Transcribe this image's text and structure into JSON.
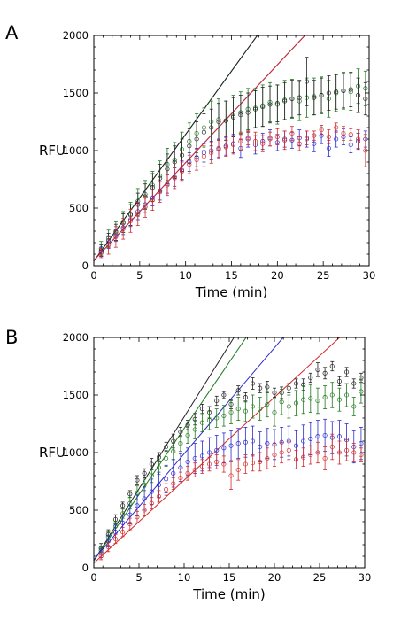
{
  "chart_data": [
    {
      "panel_label": "A",
      "type": "scatter",
      "xlabel": "Time (min)",
      "ylabel": "RFU",
      "xlim": [
        0,
        30
      ],
      "ylim": [
        0,
        2000
      ],
      "xticks": [
        0,
        5,
        10,
        15,
        20,
        25,
        30
      ],
      "yticks": [
        0,
        500,
        1000,
        1500,
        2000
      ],
      "series": [
        {
          "color": "#1e7a1e",
          "x": [
            0.8,
            1.6,
            2.4,
            3.2,
            4.0,
            4.8,
            5.6,
            6.4,
            7.2,
            8.0,
            8.8,
            9.6,
            10.4,
            11.2,
            12.0,
            12.8,
            13.6,
            14.4,
            15.2,
            16.0,
            16.8,
            17.6,
            18.4,
            19.2,
            20.0,
            20.8,
            21.6,
            22.4,
            23.2,
            24.0,
            24.8,
            25.6,
            26.4,
            27.2,
            28.0,
            28.8,
            29.6
          ],
          "y": [
            150,
            240,
            300,
            380,
            450,
            560,
            620,
            700,
            780,
            880,
            920,
            1010,
            1080,
            1150,
            1200,
            1250,
            1270,
            1260,
            1300,
            1330,
            1360,
            1370,
            1390,
            1420,
            1400,
            1440,
            1450,
            1430,
            1460,
            1470,
            1480,
            1450,
            1500,
            1520,
            1510,
            1560,
            1540
          ],
          "err": [
            60,
            70,
            80,
            90,
            100,
            110,
            120,
            120,
            130,
            140,
            150,
            150,
            160,
            170,
            170,
            180,
            180,
            170,
            180,
            180,
            180,
            170,
            180,
            170,
            170,
            170,
            170,
            170,
            170,
            160,
            160,
            160,
            160,
            160,
            160,
            150,
            150
          ],
          "fit_intercept": 40,
          "fit_slope": 110
        },
        {
          "color": "#222222",
          "x": [
            0.8,
            1.6,
            2.4,
            3.2,
            4.0,
            4.8,
            5.6,
            6.4,
            7.2,
            8.0,
            8.8,
            9.6,
            10.4,
            11.2,
            12.0,
            12.8,
            13.6,
            14.4,
            15.2,
            16.0,
            16.8,
            17.6,
            18.4,
            19.2,
            20.0,
            20.8,
            21.6,
            22.4,
            23.2,
            24.0,
            24.8,
            25.6,
            26.4,
            27.2,
            28.0,
            28.8,
            29.6
          ],
          "y": [
            130,
            220,
            290,
            370,
            440,
            530,
            600,
            680,
            760,
            840,
            900,
            960,
            1040,
            1100,
            1160,
            1200,
            1250,
            1260,
            1290,
            1310,
            1330,
            1360,
            1380,
            1400,
            1410,
            1430,
            1450,
            1460,
            1600,
            1460,
            1480,
            1500,
            1510,
            1520,
            1530,
            1480,
            1450
          ],
          "err": [
            50,
            60,
            70,
            80,
            90,
            100,
            110,
            120,
            120,
            130,
            140,
            140,
            150,
            150,
            160,
            160,
            160,
            170,
            170,
            170,
            170,
            160,
            170,
            160,
            160,
            160,
            160,
            150,
            210,
            150,
            150,
            150,
            150,
            150,
            150,
            150,
            140
          ],
          "fit_intercept": 40,
          "fit_slope": 110
        },
        {
          "color": "#2b2bcc",
          "x": [
            0.8,
            1.6,
            2.4,
            3.2,
            4.0,
            4.8,
            5.6,
            6.4,
            7.2,
            8.0,
            8.8,
            9.6,
            10.4,
            11.2,
            12.0,
            12.8,
            13.6,
            14.4,
            15.2,
            16.0,
            16.8,
            17.6,
            18.4,
            19.2,
            20.0,
            20.8,
            21.6,
            22.4,
            23.2,
            24.0,
            24.8,
            25.6,
            26.4,
            27.2,
            28.0,
            28.8,
            29.6
          ],
          "y": [
            120,
            200,
            260,
            330,
            400,
            470,
            530,
            590,
            650,
            710,
            770,
            830,
            900,
            940,
            980,
            1000,
            1020,
            1040,
            1060,
            1020,
            1100,
            1050,
            1080,
            1110,
            1070,
            1100,
            1090,
            1110,
            1100,
            1060,
            1130,
            1020,
            1100,
            1120,
            1050,
            1080,
            1100
          ],
          "err": [
            40,
            50,
            50,
            60,
            60,
            70,
            70,
            70,
            80,
            80,
            80,
            80,
            80,
            80,
            80,
            80,
            80,
            80,
            80,
            80,
            70,
            80,
            70,
            70,
            70,
            70,
            70,
            70,
            70,
            70,
            70,
            70,
            70,
            70,
            70,
            70,
            70
          ],
          "fit_intercept": 45,
          "fit_slope": 85
        },
        {
          "color": "#d42a2a",
          "x": [
            0.8,
            1.6,
            2.4,
            3.2,
            4.0,
            4.8,
            5.6,
            6.4,
            7.2,
            8.0,
            8.8,
            9.6,
            10.4,
            11.2,
            12.0,
            12.8,
            13.6,
            14.4,
            15.2,
            16.0,
            16.8,
            17.6,
            18.4,
            19.2,
            20.0,
            20.8,
            21.6,
            22.4,
            23.2,
            24.0,
            24.8,
            25.6,
            26.4,
            27.2,
            28.0,
            28.8,
            29.6
          ],
          "y": [
            110,
            180,
            250,
            320,
            390,
            450,
            510,
            570,
            640,
            700,
            760,
            820,
            880,
            920,
            950,
            980,
            1010,
            1030,
            1050,
            1080,
            1110,
            1080,
            1060,
            1100,
            1120,
            1090,
            1150,
            1060,
            1110,
            1130,
            1180,
            1120,
            1200,
            1150,
            1140,
            1100,
            1000
          ],
          "err": [
            40,
            80,
            90,
            90,
            100,
            100,
            90,
            90,
            90,
            90,
            90,
            80,
            80,
            90,
            90,
            90,
            80,
            80,
            80,
            80,
            60,
            80,
            70,
            60,
            70,
            80,
            60,
            60,
            60,
            40,
            40,
            60,
            40,
            60,
            50,
            80,
            140
          ],
          "fit_intercept": 45,
          "fit_slope": 85
        }
      ]
    },
    {
      "panel_label": "B",
      "type": "scatter",
      "xlabel": "Time (min)",
      "ylabel": "RFU",
      "xlim": [
        0,
        30
      ],
      "ylim": [
        0,
        2000
      ],
      "xticks": [
        0,
        5,
        10,
        15,
        20,
        25,
        30
      ],
      "yticks": [
        0,
        500,
        1000,
        1500,
        2000
      ],
      "series": [
        {
          "color": "#222222",
          "x": [
            0.8,
            1.6,
            2.4,
            3.2,
            4.0,
            4.8,
            5.6,
            6.4,
            7.2,
            8.0,
            8.8,
            9.6,
            10.4,
            11.2,
            12.0,
            12.8,
            13.6,
            14.4,
            15.2,
            16.0,
            16.8,
            17.6,
            18.4,
            19.2,
            20.0,
            20.8,
            21.6,
            22.4,
            23.2,
            24.0,
            24.8,
            25.6,
            26.4,
            27.2,
            28.0,
            28.8,
            29.6
          ],
          "y": [
            170,
            290,
            420,
            540,
            640,
            760,
            820,
            900,
            960,
            1050,
            1100,
            1180,
            1240,
            1290,
            1380,
            1350,
            1450,
            1500,
            1420,
            1540,
            1480,
            1600,
            1560,
            1570,
            1520,
            1520,
            1560,
            1600,
            1590,
            1650,
            1720,
            1690,
            1750,
            1620,
            1700,
            1600,
            1650
          ],
          "err": [
            40,
            40,
            40,
            30,
            30,
            40,
            40,
            50,
            40,
            40,
            60,
            40,
            40,
            50,
            40,
            50,
            40,
            30,
            40,
            40,
            40,
            50,
            40,
            50,
            40,
            50,
            40,
            40,
            50,
            40,
            60,
            50,
            40,
            40,
            40,
            40,
            40
          ],
          "fit_intercept": 60,
          "fit_slope": 125
        },
        {
          "color": "#1e7a1e",
          "x": [
            0.8,
            1.6,
            2.4,
            3.2,
            4.0,
            4.8,
            5.6,
            6.4,
            7.2,
            8.0,
            8.8,
            9.6,
            10.4,
            11.2,
            12.0,
            12.8,
            13.6,
            14.4,
            15.2,
            16.0,
            16.8,
            17.6,
            18.4,
            19.2,
            20.0,
            20.8,
            21.6,
            22.4,
            23.2,
            24.0,
            24.8,
            25.6,
            26.4,
            27.2,
            28.0,
            28.8,
            29.6
          ],
          "y": [
            150,
            270,
            360,
            470,
            560,
            650,
            720,
            800,
            870,
            950,
            1010,
            1080,
            1150,
            1200,
            1260,
            1280,
            1300,
            1320,
            1350,
            1380,
            1360,
            1400,
            1380,
            1420,
            1350,
            1440,
            1400,
            1430,
            1460,
            1470,
            1450,
            1480,
            1500,
            1460,
            1500,
            1400,
            1530
          ],
          "err": [
            30,
            40,
            40,
            40,
            50,
            60,
            50,
            60,
            60,
            70,
            70,
            70,
            70,
            80,
            80,
            80,
            80,
            90,
            100,
            100,
            90,
            100,
            100,
            110,
            120,
            110,
            100,
            110,
            120,
            120,
            110,
            100,
            110,
            100,
            100,
            80,
            100
          ],
          "fit_intercept": 60,
          "fit_slope": 115
        },
        {
          "color": "#2b2bcc",
          "x": [
            0.8,
            1.6,
            2.4,
            3.2,
            4.0,
            4.8,
            5.6,
            6.4,
            7.2,
            8.0,
            8.8,
            9.6,
            10.4,
            11.2,
            12.0,
            12.8,
            13.6,
            14.4,
            15.2,
            16.0,
            16.8,
            17.6,
            18.4,
            19.2,
            20.0,
            20.8,
            21.6,
            22.4,
            23.2,
            24.0,
            24.8,
            25.6,
            26.4,
            27.2,
            28.0,
            28.8,
            29.6
          ],
          "y": [
            130,
            230,
            310,
            390,
            460,
            540,
            600,
            660,
            720,
            770,
            820,
            870,
            920,
            950,
            970,
            1000,
            1020,
            1040,
            1060,
            1080,
            1090,
            1100,
            1050,
            1080,
            1070,
            1090,
            1100,
            1060,
            1100,
            1120,
            1140,
            1150,
            1130,
            1140,
            1110,
            1050,
            1080
          ],
          "err": [
            40,
            50,
            60,
            70,
            80,
            90,
            100,
            110,
            110,
            120,
            120,
            120,
            120,
            130,
            130,
            130,
            130,
            130,
            130,
            130,
            130,
            130,
            130,
            130,
            130,
            130,
            130,
            130,
            140,
            140,
            140,
            140,
            140,
            140,
            140,
            140,
            140
          ],
          "fit_intercept": 70,
          "fit_slope": 92
        },
        {
          "color": "#d42a2a",
          "x": [
            0.8,
            1.6,
            2.4,
            3.2,
            4.0,
            4.8,
            5.6,
            6.4,
            7.2,
            8.0,
            8.8,
            9.6,
            10.4,
            11.2,
            12.0,
            12.8,
            13.6,
            14.4,
            15.2,
            16.0,
            16.8,
            17.6,
            18.4,
            19.2,
            20.0,
            20.8,
            21.6,
            22.4,
            23.2,
            24.0,
            24.8,
            25.6,
            26.4,
            27.2,
            28.0,
            28.8,
            29.6
          ],
          "y": [
            100,
            180,
            250,
            310,
            380,
            440,
            500,
            560,
            620,
            680,
            730,
            780,
            820,
            850,
            880,
            900,
            920,
            900,
            800,
            850,
            900,
            910,
            920,
            950,
            980,
            1000,
            1020,
            940,
            960,
            980,
            1000,
            950,
            1050,
            1000,
            1020,
            1000,
            980
          ],
          "err": [
            30,
            40,
            40,
            40,
            50,
            50,
            50,
            50,
            50,
            50,
            50,
            50,
            60,
            60,
            60,
            60,
            60,
            70,
            120,
            90,
            80,
            70,
            80,
            90,
            100,
            90,
            80,
            80,
            80,
            80,
            90,
            100,
            110,
            100,
            90,
            80,
            60
          ],
          "fit_intercept": 40,
          "fit_slope": 72
        }
      ]
    }
  ]
}
